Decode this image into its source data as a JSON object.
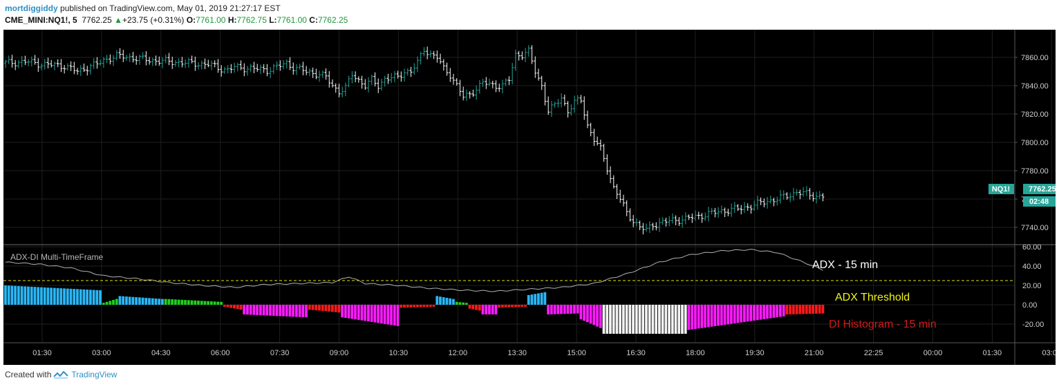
{
  "header": {
    "username": "mortdiggiddy",
    "published": "published on TradingView.com, May 01, 2019 21:27:17 EST",
    "symbol": "CME_MINI:NQ1!, 5",
    "price": "7762.25",
    "change_arrow": "▲",
    "change": "+23.75 (+0.31%)",
    "o_label": "O:",
    "o_value": "7761.00",
    "h_label": "H:",
    "h_value": "7762.75",
    "l_label": "L:",
    "l_value": "7761.00",
    "c_label": "C:",
    "c_value": "7762.25"
  },
  "price_tag": {
    "symbol": "NQ1!",
    "price": "7762.25",
    "countdown": "02:48"
  },
  "indicator_title": "ADX-DI Multi-TimeFrame",
  "annotations": {
    "adx": "ADX - 15 min",
    "threshold": "ADX Threshold",
    "histogram": "DI Histogram - 15 min"
  },
  "footer": {
    "created_with": "Created with",
    "brand": "TradingView"
  },
  "colors": {
    "background": "#000000",
    "grid": "#1f1f1f",
    "candle_up": "#26a69a",
    "candle_down": "#ffffff",
    "adx_line": "#b2b2b2",
    "threshold": "#e6e600",
    "hist_blue": "#29b6f6",
    "hist_green": "#1fd11f",
    "hist_red": "#ff1a1a",
    "hist_magenta": "#ff1aff",
    "hist_white": "#f2f2f2",
    "histogram_label": "#d11a1a",
    "threshold_label": "#f2f21a",
    "tag": "#26a69a"
  },
  "chart_data": {
    "type": "candlestick",
    "x_ticks": [
      "01:30",
      "03:00",
      "04:30",
      "06:00",
      "07:30",
      "09:00",
      "10:30",
      "12:00",
      "13:30",
      "15:00",
      "16:30",
      "18:00",
      "19:30",
      "21:00",
      "22:25",
      "00:00",
      "01:30",
      "03:00"
    ],
    "price_axis": {
      "ylim": [
        7728,
        7872
      ],
      "ticks": [
        "7740.00",
        "7760.00",
        "7780.00",
        "7800.00",
        "7820.00",
        "7840.00",
        "7860.00"
      ]
    },
    "price_close_path": [
      [
        0,
        7856
      ],
      [
        6,
        7857
      ],
      [
        12,
        7855
      ],
      [
        18,
        7854
      ],
      [
        22,
        7850
      ],
      [
        24,
        7852
      ],
      [
        26,
        7854
      ],
      [
        28,
        7855
      ],
      [
        30,
        7858
      ],
      [
        34,
        7861
      ],
      [
        38,
        7860
      ],
      [
        44,
        7858
      ],
      [
        50,
        7857
      ],
      [
        56,
        7856
      ],
      [
        62,
        7855
      ],
      [
        66,
        7852
      ],
      [
        68,
        7851
      ],
      [
        70,
        7853
      ],
      [
        76,
        7852
      ],
      [
        80,
        7851
      ],
      [
        84,
        7854
      ],
      [
        86,
        7856
      ],
      [
        88,
        7853
      ],
      [
        92,
        7850
      ],
      [
        96,
        7848
      ],
      [
        98,
        7846
      ],
      [
        100,
        7840
      ],
      [
        102,
        7836
      ],
      [
        104,
        7838
      ],
      [
        106,
        7848
      ],
      [
        108,
        7844
      ],
      [
        110,
        7840
      ],
      [
        112,
        7844
      ],
      [
        114,
        7840
      ],
      [
        116,
        7845
      ],
      [
        120,
        7846
      ],
      [
        122,
        7850
      ],
      [
        124,
        7850
      ],
      [
        126,
        7856
      ],
      [
        128,
        7866
      ],
      [
        130,
        7862
      ],
      [
        132,
        7860
      ],
      [
        134,
        7852
      ],
      [
        136,
        7848
      ],
      [
        138,
        7840
      ],
      [
        140,
        7832
      ],
      [
        142,
        7834
      ],
      [
        144,
        7838
      ],
      [
        146,
        7842
      ],
      [
        150,
        7840
      ],
      [
        152,
        7840
      ],
      [
        154,
        7844
      ],
      [
        156,
        7862
      ],
      [
        158,
        7862
      ],
      [
        160,
        7864
      ],
      [
        162,
        7850
      ],
      [
        164,
        7840
      ],
      [
        166,
        7822
      ],
      [
        168,
        7826
      ],
      [
        170,
        7832
      ],
      [
        172,
        7822
      ],
      [
        174,
        7828
      ],
      [
        176,
        7830
      ],
      [
        178,
        7812
      ],
      [
        180,
        7802
      ],
      [
        182,
        7795
      ],
      [
        184,
        7782
      ],
      [
        186,
        7768
      ],
      [
        188,
        7760
      ],
      [
        190,
        7750
      ],
      [
        192,
        7745
      ],
      [
        194,
        7740
      ],
      [
        196,
        7738
      ],
      [
        198,
        7742
      ],
      [
        200,
        7743
      ],
      [
        204,
        7745
      ],
      [
        208,
        7746
      ],
      [
        212,
        7748
      ],
      [
        216,
        7750
      ],
      [
        220,
        7752
      ],
      [
        224,
        7753
      ],
      [
        228,
        7755
      ],
      [
        232,
        7758
      ],
      [
        236,
        7760
      ],
      [
        240,
        7763
      ],
      [
        242,
        7765
      ],
      [
        244,
        7764
      ],
      [
        246,
        7763
      ],
      [
        248,
        7762
      ],
      [
        250,
        7762.25
      ]
    ],
    "adx_axis": {
      "ylim": [
        -40,
        60
      ],
      "ticks": [
        "60.00",
        "40.00",
        "20.00",
        "0.00",
        "-20.00"
      ]
    },
    "adx_threshold": 25,
    "adx_path": [
      [
        0,
        44
      ],
      [
        10,
        42
      ],
      [
        20,
        38
      ],
      [
        30,
        30
      ],
      [
        40,
        27
      ],
      [
        50,
        23
      ],
      [
        60,
        20
      ],
      [
        70,
        18
      ],
      [
        80,
        21
      ],
      [
        90,
        22
      ],
      [
        100,
        23
      ],
      [
        105,
        29
      ],
      [
        110,
        22
      ],
      [
        120,
        20
      ],
      [
        130,
        17
      ],
      [
        140,
        15
      ],
      [
        150,
        14
      ],
      [
        160,
        16
      ],
      [
        170,
        18
      ],
      [
        180,
        22
      ],
      [
        190,
        32
      ],
      [
        200,
        44
      ],
      [
        210,
        52
      ],
      [
        220,
        56
      ],
      [
        228,
        57
      ],
      [
        236,
        54
      ],
      [
        244,
        44
      ],
      [
        250,
        36
      ]
    ],
    "histogram_segments": [
      {
        "from": 0,
        "to": 29,
        "color": "blue",
        "start": 20,
        "end": 15
      },
      {
        "from": 30,
        "to": 34,
        "color": "green",
        "start": 2,
        "end": 6
      },
      {
        "from": 35,
        "to": 48,
        "color": "blue",
        "start": 9,
        "end": 6
      },
      {
        "from": 49,
        "to": 66,
        "color": "green",
        "start": 6,
        "end": 3
      },
      {
        "from": 67,
        "to": 72,
        "color": "red",
        "start": -2,
        "end": -5
      },
      {
        "from": 73,
        "to": 92,
        "color": "magenta",
        "start": -10,
        "end": -13
      },
      {
        "from": 93,
        "to": 102,
        "color": "red",
        "start": -5,
        "end": -8
      },
      {
        "from": 103,
        "to": 120,
        "color": "magenta",
        "start": -13,
        "end": -22
      },
      {
        "from": 121,
        "to": 131,
        "color": "red",
        "start": -3,
        "end": -2
      },
      {
        "from": 132,
        "to": 137,
        "color": "blue",
        "start": 9,
        "end": 6
      },
      {
        "from": 138,
        "to": 141,
        "color": "green",
        "start": 3,
        "end": 2
      },
      {
        "from": 142,
        "to": 145,
        "color": "red",
        "start": -4,
        "end": -6
      },
      {
        "from": 146,
        "to": 150,
        "color": "magenta",
        "start": -10,
        "end": -10
      },
      {
        "from": 151,
        "to": 159,
        "color": "red",
        "start": -3,
        "end": -2
      },
      {
        "from": 160,
        "to": 165,
        "color": "blue",
        "start": 10,
        "end": 13
      },
      {
        "from": 166,
        "to": 175,
        "color": "magenta",
        "start": -10,
        "end": -9
      },
      {
        "from": 176,
        "to": 182,
        "color": "magenta",
        "start": -15,
        "end": -24
      },
      {
        "from": 183,
        "to": 208,
        "color": "white",
        "start": -30,
        "end": -30
      },
      {
        "from": 209,
        "to": 238,
        "color": "magenta",
        "start": -26,
        "end": -12
      },
      {
        "from": 239,
        "to": 250,
        "color": "red",
        "start": -10,
        "end": -9
      }
    ]
  }
}
